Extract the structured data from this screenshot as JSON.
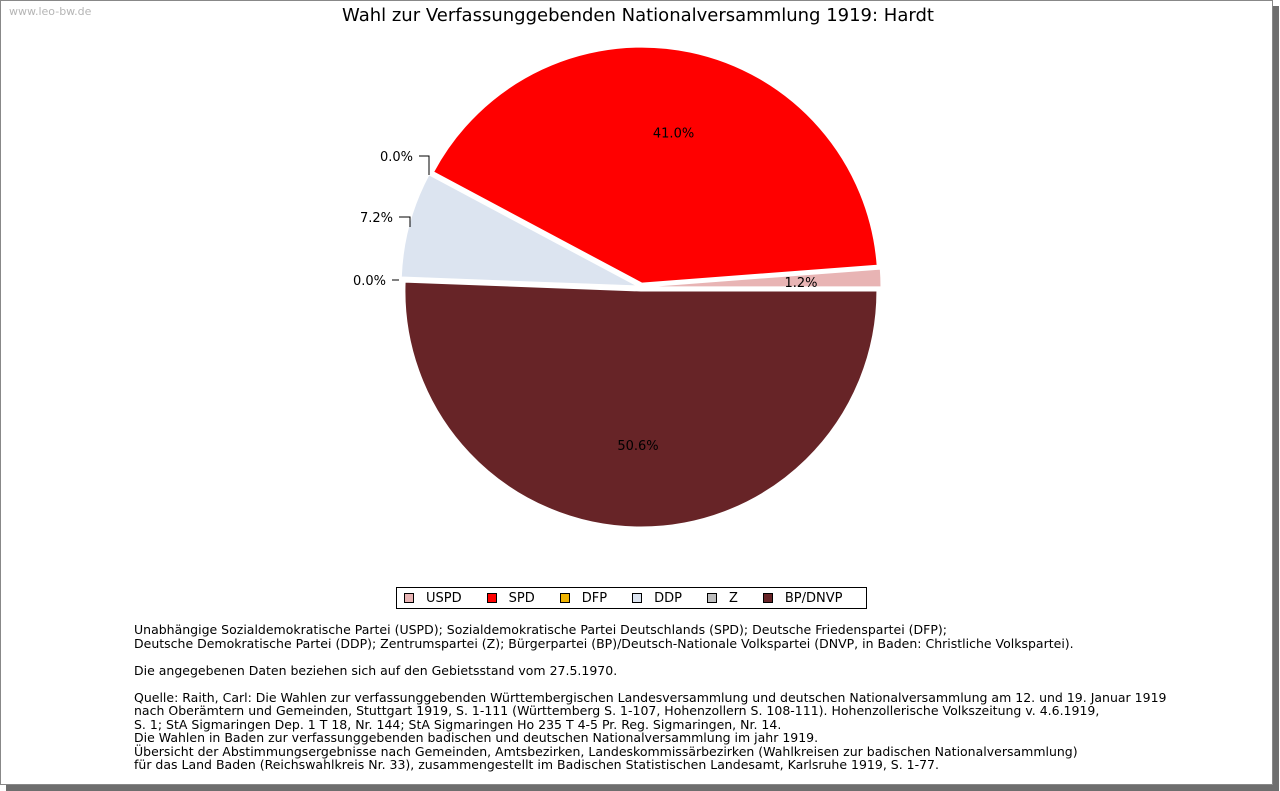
{
  "watermark": "www.leo-bw.de",
  "chart_data": {
    "type": "pie",
    "title": "Wahl zur Verfassunggebenden Nationalversammlung 1919: Hardt",
    "legend_position": "bottom",
    "slices": [
      {
        "name": "USPD",
        "value": 1.2,
        "label": "1.2%",
        "color": "#e8b4b4"
      },
      {
        "name": "SPD",
        "value": 41.0,
        "label": "41.0%",
        "color": "#ff0000"
      },
      {
        "name": "DFP",
        "value": 0.0,
        "label": "0.0%",
        "color": "#f0b400"
      },
      {
        "name": "DDP",
        "value": 7.2,
        "label": "7.2%",
        "color": "#dce4f0"
      },
      {
        "name": "Z",
        "value": 0.0,
        "label": "0.0%",
        "color": "#bdbdbd"
      },
      {
        "name": "BP/DNVP",
        "value": 50.6,
        "label": "50.6%",
        "color": "#672427"
      }
    ]
  },
  "notes": {
    "parties": "Unabhängige Sozialdemokratische Partei (USPD); Sozialdemokratische Partei Deutschlands (SPD); Deutsche Friedenspartei (DFP);\nDeutsche Demokratische Partei (DDP); Zentrumspartei (Z); Bürgerpartei (BP)/Deutsch-Nationale Volkspartei (DNVP, in Baden: Christliche Volkspartei).",
    "territory": "Die angegebenen Daten beziehen sich auf den Gebietsstand vom 27.5.1970.",
    "source": "Quelle: Raith, Carl: Die Wahlen zur verfassunggebenden Württembergischen Landesversammlung und deutschen Nationalversammlung am 12. und 19. Januar 1919\nnach Oberämtern und Gemeinden, Stuttgart 1919, S. 1-111 (Württemberg S. 1-107, Hohenzollern S. 108-111). Hohenzollerische Volkszeitung v. 4.6.1919,\nS. 1; StA Sigmaringen Dep. 1 T 18, Nr. 144; StA Sigmaringen Ho 235 T 4-5 Pr. Reg. Sigmaringen, Nr. 14.\nDie Wahlen in Baden zur verfassunggebenden badischen und deutschen Nationalversammlung im jahr 1919.\nÜbersicht der Abstimmungsergebnisse nach Gemeinden, Amtsbezirken, Landeskommissärbezirken (Wahlkreisen zur badischen Nationalversammlung)\nfür das Land Baden (Reichswahlkreis Nr. 33), zusammengestellt im Badischen Statistischen Landesamt, Karlsruhe 1919, S. 1-77."
  }
}
